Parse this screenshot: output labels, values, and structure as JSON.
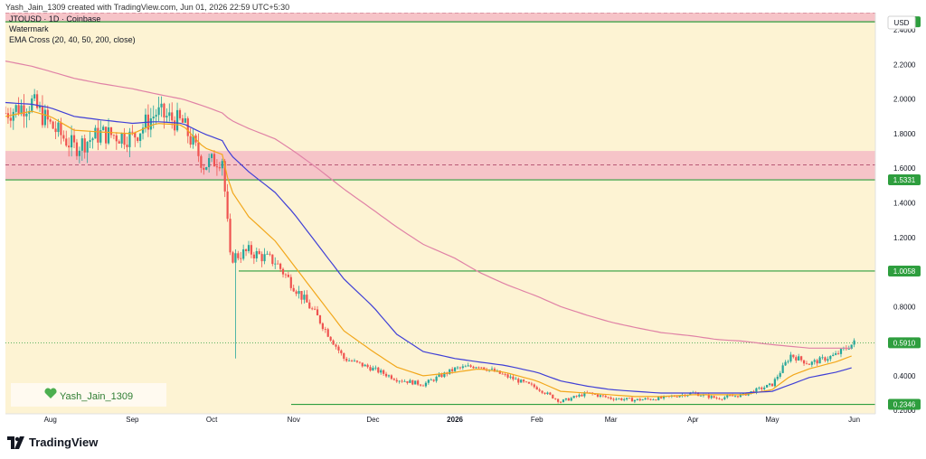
{
  "header": {
    "caption": "Yash_Jain_1309 created with TradingView.com, Jun 01, 2026 22:59 UTC+5:30"
  },
  "legend": {
    "symbol": "JTOUSD · 1D · Coinbase",
    "watermark": "Watermark",
    "indicator": "EMA Cross (20, 40, 50, 200, close)"
  },
  "currency": "USD",
  "watermark_badge": "Yash_Jain_1309",
  "brand": "TradingView",
  "colors": {
    "background": "#fdf3d3",
    "up": "#26a69a",
    "down": "#ef5350",
    "ema_fast": "#f2a71b",
    "ema_mid": "#3f3fd6",
    "ema_slow": "#e082a6",
    "zone": "#f3b4c4",
    "level_line": "#2e9e3e"
  },
  "chart_data": {
    "type": "line",
    "title": "JTOUSD · 1D · Coinbase",
    "ylim": [
      0.18,
      2.5
    ],
    "x_labels": [
      "Aug",
      "Sep",
      "Oct",
      "Nov",
      "Dec",
      "2026",
      "Feb",
      "Mar",
      "Apr",
      "May",
      "Jun"
    ],
    "y_ticks": [
      "2.4000",
      "2.2000",
      "2.0000",
      "1.8000",
      "1.6000",
      "1.4000",
      "1.2000",
      "1.0000",
      "0.8000",
      "0.6000",
      "0.4000",
      "0.2000"
    ],
    "price_tags": [
      {
        "label": "2.4471",
        "value": 2.4471,
        "color": "#2e9e3e"
      },
      {
        "label": "1.5331",
        "value": 1.5331,
        "color": "#2e9e3e"
      },
      {
        "label": "1.0058",
        "value": 1.0058,
        "color": "#2e9e3e"
      },
      {
        "label": "0.5910",
        "value": 0.591,
        "color": "#2e9e3e"
      },
      {
        "label": "0.2346",
        "value": 0.2346,
        "color": "#2e9e3e"
      }
    ],
    "horizontal_levels": [
      2.4471,
      1.5331,
      1.0058,
      0.2346
    ],
    "zones": [
      {
        "from": 2.4471,
        "to": 2.56,
        "dashed_mid": 2.5
      },
      {
        "from": 1.5331,
        "to": 1.7,
        "dashed_mid": 1.62
      }
    ],
    "price_path": {
      "x": [
        "Jul 15",
        "Jul 25",
        "Aug 1",
        "Aug 10",
        "Aug 20",
        "Sep 1",
        "Sep 10",
        "Sep 20",
        "Sep 28",
        "Oct 5",
        "Oct 8",
        "Oct 15",
        "Oct 25",
        "Nov 1",
        "Nov 10",
        "Nov 20",
        "Dec 1",
        "Dec 10",
        "Dec 20",
        "Jan 1",
        "Jan 10",
        "Jan 20",
        "Feb 1",
        "Feb 10",
        "Feb 20",
        "Mar 1",
        "Mar 10",
        "Mar 20",
        "Apr 1",
        "Apr 10",
        "Apr 20",
        "May 1",
        "May 8",
        "May 15",
        "May 25",
        "Jun 1"
      ],
      "close": [
        1.92,
        1.98,
        1.85,
        1.72,
        1.8,
        1.78,
        1.92,
        1.86,
        1.62,
        1.66,
        1.08,
        1.12,
        1.06,
        0.92,
        0.74,
        0.5,
        0.44,
        0.38,
        0.35,
        0.44,
        0.46,
        0.4,
        0.33,
        0.25,
        0.3,
        0.27,
        0.26,
        0.27,
        0.3,
        0.27,
        0.29,
        0.35,
        0.52,
        0.47,
        0.52,
        0.591
      ]
    },
    "series": [
      {
        "name": "EMA 20",
        "values": [
          1.9,
          1.93,
          1.9,
          1.82,
          1.81,
          1.8,
          1.86,
          1.85,
          1.72,
          1.68,
          1.48,
          1.32,
          1.18,
          1.04,
          0.86,
          0.66,
          0.54,
          0.45,
          0.4,
          0.42,
          0.44,
          0.42,
          0.37,
          0.31,
          0.3,
          0.29,
          0.28,
          0.28,
          0.29,
          0.29,
          0.29,
          0.32,
          0.4,
          0.44,
          0.48,
          0.52
        ]
      },
      {
        "name": "EMA 50",
        "values": [
          1.98,
          1.97,
          1.95,
          1.9,
          1.88,
          1.86,
          1.87,
          1.86,
          1.8,
          1.76,
          1.68,
          1.58,
          1.46,
          1.34,
          1.16,
          0.96,
          0.8,
          0.64,
          0.54,
          0.5,
          0.48,
          0.46,
          0.42,
          0.37,
          0.34,
          0.32,
          0.31,
          0.3,
          0.3,
          0.3,
          0.3,
          0.31,
          0.35,
          0.39,
          0.42,
          0.45
        ]
      },
      {
        "name": "EMA 200",
        "values": [
          2.22,
          2.19,
          2.16,
          2.12,
          2.09,
          2.06,
          2.03,
          2.0,
          1.96,
          1.92,
          1.88,
          1.83,
          1.77,
          1.7,
          1.6,
          1.48,
          1.36,
          1.26,
          1.16,
          1.08,
          1.0,
          0.93,
          0.86,
          0.8,
          0.75,
          0.71,
          0.68,
          0.65,
          0.63,
          0.61,
          0.6,
          0.58,
          0.57,
          0.56,
          0.56,
          0.56
        ]
      }
    ]
  }
}
